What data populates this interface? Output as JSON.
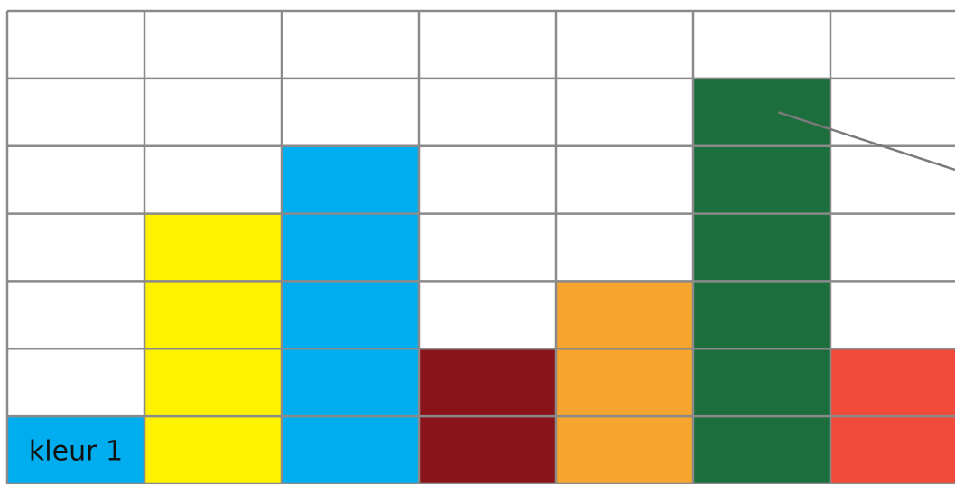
{
  "chart_data": {
    "type": "bar",
    "categories": [
      "kleur 1",
      "",
      "",
      "",
      "",
      "",
      ""
    ],
    "values": [
      1,
      4,
      5,
      2,
      3,
      6,
      2
    ],
    "colors": [
      "#00aeef",
      "#fff200",
      "#00aeef",
      "#89151a",
      "#f6a52e",
      "#1c6f3d",
      "#f04a3a"
    ],
    "ylim": [
      0,
      7
    ],
    "grid": true,
    "grid_color": "#8a8a8a",
    "annotations": [
      {
        "type": "leader-line",
        "from_category_index": 5,
        "to": "right-edge"
      }
    ]
  }
}
